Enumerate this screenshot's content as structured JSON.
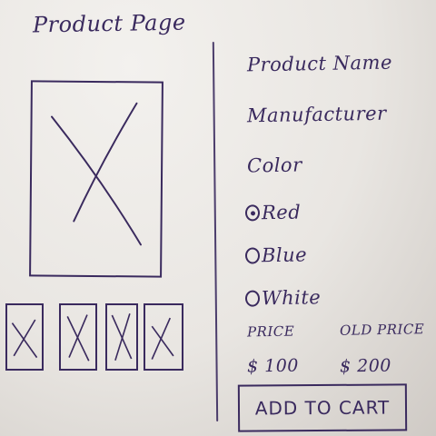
{
  "page": {
    "title": "Product Page"
  },
  "product": {
    "name_label": "Product Name",
    "manufacturer_label": "Manufacturer",
    "color_label": "Color"
  },
  "colors": [
    {
      "label": "Red",
      "selected": true
    },
    {
      "label": "Blue",
      "selected": false
    },
    {
      "label": "White",
      "selected": false
    }
  ],
  "pricing": {
    "price_label": "PRICE",
    "price_value": "$ 100",
    "old_price_label": "OLD PRICE",
    "old_price_value": "$ 200"
  },
  "actions": {
    "add_to_cart_label": "ADD TO CART"
  },
  "ink_color": "#3a2a5e"
}
